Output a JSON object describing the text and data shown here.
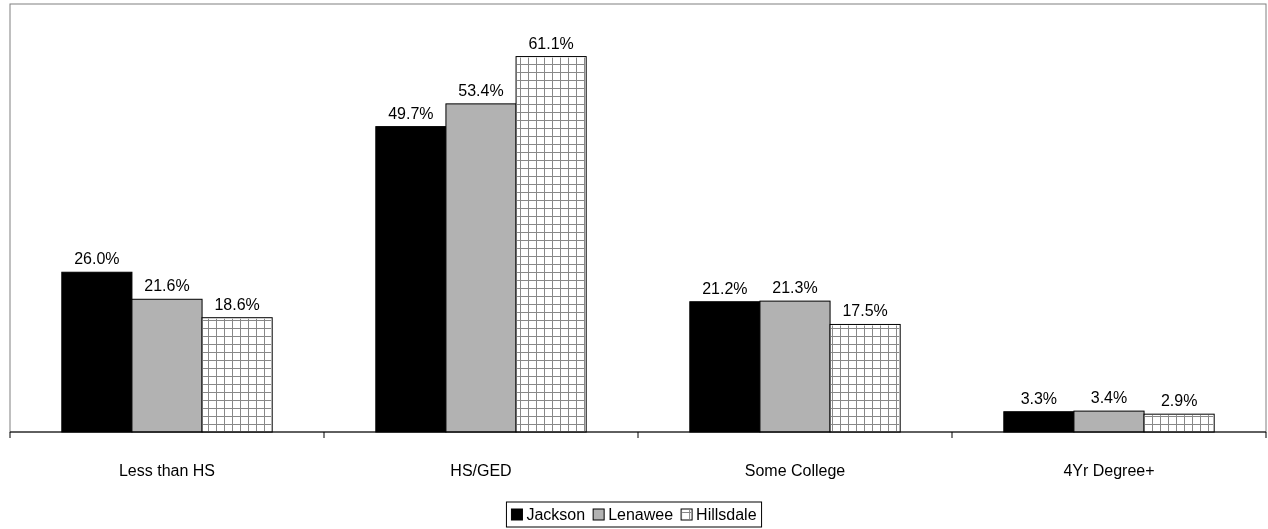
{
  "chart_data": {
    "type": "bar",
    "categories": [
      "Less than HS",
      "HS/GED",
      "Some College",
      "4Yr Degree+"
    ],
    "series": [
      {
        "name": "Jackson",
        "color": "#000000",
        "values": [
          26.0,
          49.7,
          21.2,
          3.3
        ],
        "value_labels": [
          "26.0%",
          "49.7%",
          "21.2%",
          "3.3%"
        ]
      },
      {
        "name": "Lenawee",
        "color": "#b2b2b2",
        "values": [
          21.6,
          53.4,
          21.3,
          3.4
        ],
        "value_labels": [
          "21.6%",
          "53.4%",
          "21.3%",
          "3.4%"
        ]
      },
      {
        "name": "Hillsdale",
        "color": "#ffffff",
        "values": [
          18.6,
          61.1,
          17.5,
          2.9
        ],
        "value_labels": [
          "18.6%",
          "61.1%",
          "17.5%",
          "2.9%"
        ]
      }
    ],
    "legend": "bottom"
  }
}
